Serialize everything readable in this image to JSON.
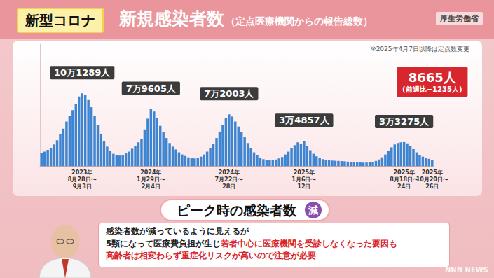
{
  "header": {
    "badge": "新型コロナ",
    "source": "厚生労働省"
  },
  "chart_data": {
    "type": "bar",
    "title": "新規感染者数",
    "subtitle": "（定点医療機関からの報告総数）",
    "annotation": "※2025年4月7日以降は定点数変更",
    "categories": [
      null,
      null,
      null,
      null,
      null,
      null,
      null,
      null,
      null,
      null,
      null,
      null,
      null,
      "2023年\n8月28日〜\n9月3日",
      null,
      null,
      null,
      null,
      null,
      null,
      null,
      null,
      null,
      null,
      null,
      null,
      null,
      null,
      null,
      null,
      null,
      null,
      null,
      null,
      null,
      "2024年\n1月29日〜\n2月4日",
      null,
      null,
      null,
      null,
      null,
      null,
      null,
      null,
      null,
      null,
      null,
      null,
      null,
      null,
      null,
      null,
      null,
      null,
      null,
      null,
      null,
      null,
      null,
      null,
      "2024年\n7月22日〜\n28日",
      null,
      null,
      null,
      null,
      null,
      null,
      null,
      null,
      null,
      null,
      null,
      null,
      null,
      null,
      null,
      null,
      null,
      null,
      null,
      null,
      null,
      null,
      null,
      "2025年\n1月6日〜\n12日",
      null,
      null,
      null,
      null,
      null,
      null,
      null,
      null,
      null,
      null,
      null,
      null,
      null,
      null,
      null,
      null,
      null,
      null,
      null,
      null,
      null,
      null,
      null,
      null,
      null,
      null,
      null,
      null,
      null,
      null,
      null,
      "2025年\n8月18日〜\n24日",
      null,
      null,
      null,
      null,
      null,
      null,
      null,
      null,
      "2025年\n10月20日〜\n26日"
    ],
    "values": [
      18000,
      20000,
      22500,
      25000,
      30000,
      36000,
      44000,
      52000,
      62000,
      70000,
      78000,
      87000,
      97000,
      101289,
      99500,
      92000,
      82000,
      70000,
      57000,
      45000,
      35000,
      27000,
      21000,
      17000,
      15000,
      14500,
      15500,
      17500,
      20000,
      24000,
      28000,
      33000,
      38000,
      51000,
      66000,
      79605,
      76000,
      67000,
      56000,
      47000,
      39000,
      32000,
      27000,
      23000,
      19000,
      16000,
      14000,
      12000,
      11000,
      10500,
      11500,
      13000,
      16000,
      20000,
      25000,
      31000,
      39000,
      48000,
      57000,
      67000,
      72003,
      69000,
      62000,
      55000,
      47000,
      40000,
      32000,
      25000,
      19000,
      15000,
      11500,
      9500,
      8500,
      8000,
      8200,
      9000,
      10500,
      12500,
      16000,
      20000,
      25000,
      29000,
      33000,
      31000,
      34857,
      28000,
      22000,
      17000,
      13500,
      11000,
      9500,
      8500,
      8000,
      7500,
      7200,
      7000,
      6800,
      6500,
      6000,
      5500,
      5200,
      5000,
      4800,
      4600,
      4700,
      5000,
      5800,
      7000,
      9000,
      12000,
      16000,
      21000,
      26000,
      30000,
      32000,
      33000,
      33275,
      31500,
      28000,
      23500,
      19000,
      15500,
      13000,
      11500,
      9900,
      8665
    ],
    "value_labels": [
      null,
      null,
      null,
      null,
      null,
      null,
      null,
      null,
      null,
      null,
      null,
      null,
      null,
      "10万1289人",
      null,
      null,
      null,
      null,
      null,
      null,
      null,
      null,
      null,
      null,
      null,
      null,
      null,
      null,
      null,
      null,
      null,
      null,
      null,
      null,
      null,
      "7万9605人",
      null,
      null,
      null,
      null,
      null,
      null,
      null,
      null,
      null,
      null,
      null,
      null,
      null,
      null,
      null,
      null,
      null,
      null,
      null,
      null,
      null,
      null,
      null,
      null,
      "7万2003人",
      null,
      null,
      null,
      null,
      null,
      null,
      null,
      null,
      null,
      null,
      null,
      null,
      null,
      null,
      null,
      null,
      null,
      null,
      null,
      null,
      null,
      null,
      null,
      "3万4857人",
      null,
      null,
      null,
      null,
      null,
      null,
      null,
      null,
      null,
      null,
      null,
      null,
      null,
      null,
      null,
      null,
      null,
      null,
      null,
      null,
      null,
      null,
      null,
      null,
      null,
      null,
      null,
      null,
      null,
      null,
      null,
      "3万3275人",
      null,
      null,
      null,
      null,
      null,
      null,
      null,
      null,
      "8665人"
    ],
    "value_notes": [
      null,
      null,
      null,
      null,
      null,
      null,
      null,
      null,
      null,
      null,
      null,
      null,
      null,
      null,
      null,
      null,
      null,
      null,
      null,
      null,
      null,
      null,
      null,
      null,
      null,
      null,
      null,
      null,
      null,
      null,
      null,
      null,
      null,
      null,
      null,
      null,
      null,
      null,
      null,
      null,
      null,
      null,
      null,
      null,
      null,
      null,
      null,
      null,
      null,
      null,
      null,
      null,
      null,
      null,
      null,
      null,
      null,
      null,
      null,
      null,
      null,
      null,
      null,
      null,
      null,
      null,
      null,
      null,
      null,
      null,
      null,
      null,
      null,
      null,
      null,
      null,
      null,
      null,
      null,
      null,
      null,
      null,
      null,
      null,
      null,
      null,
      null,
      null,
      null,
      null,
      null,
      null,
      null,
      null,
      null,
      null,
      null,
      null,
      null,
      null,
      null,
      null,
      null,
      null,
      null,
      null,
      null,
      null,
      null,
      null,
      null,
      null,
      null,
      null,
      null,
      null,
      null,
      null,
      null,
      null,
      null,
      null,
      null,
      null,
      null,
      "(前週比−1235人)"
    ],
    "color": "#3d85d1",
    "ylim": [
      0,
      170000
    ],
    "grid": false,
    "data_labels": true,
    "tick_labels": "x"
  },
  "footer": {
    "caption": "ピーク時の感染者数",
    "badge": "減",
    "comment": [
      [
        {
          "text": "感染者数が減っているように見えるが",
          "highlight": false
        }
      ],
      [
        {
          "text": "5類になって医療費負担が生じ",
          "highlight": false
        },
        {
          "text": "若者中心に医療機関を受診しなくなった要因も",
          "highlight": true
        }
      ],
      [
        {
          "text": "高齢者は相変わらず重症化リスクが高いので注意が必要",
          "highlight": true
        }
      ]
    ],
    "watermark": "NNN NEWS"
  }
}
